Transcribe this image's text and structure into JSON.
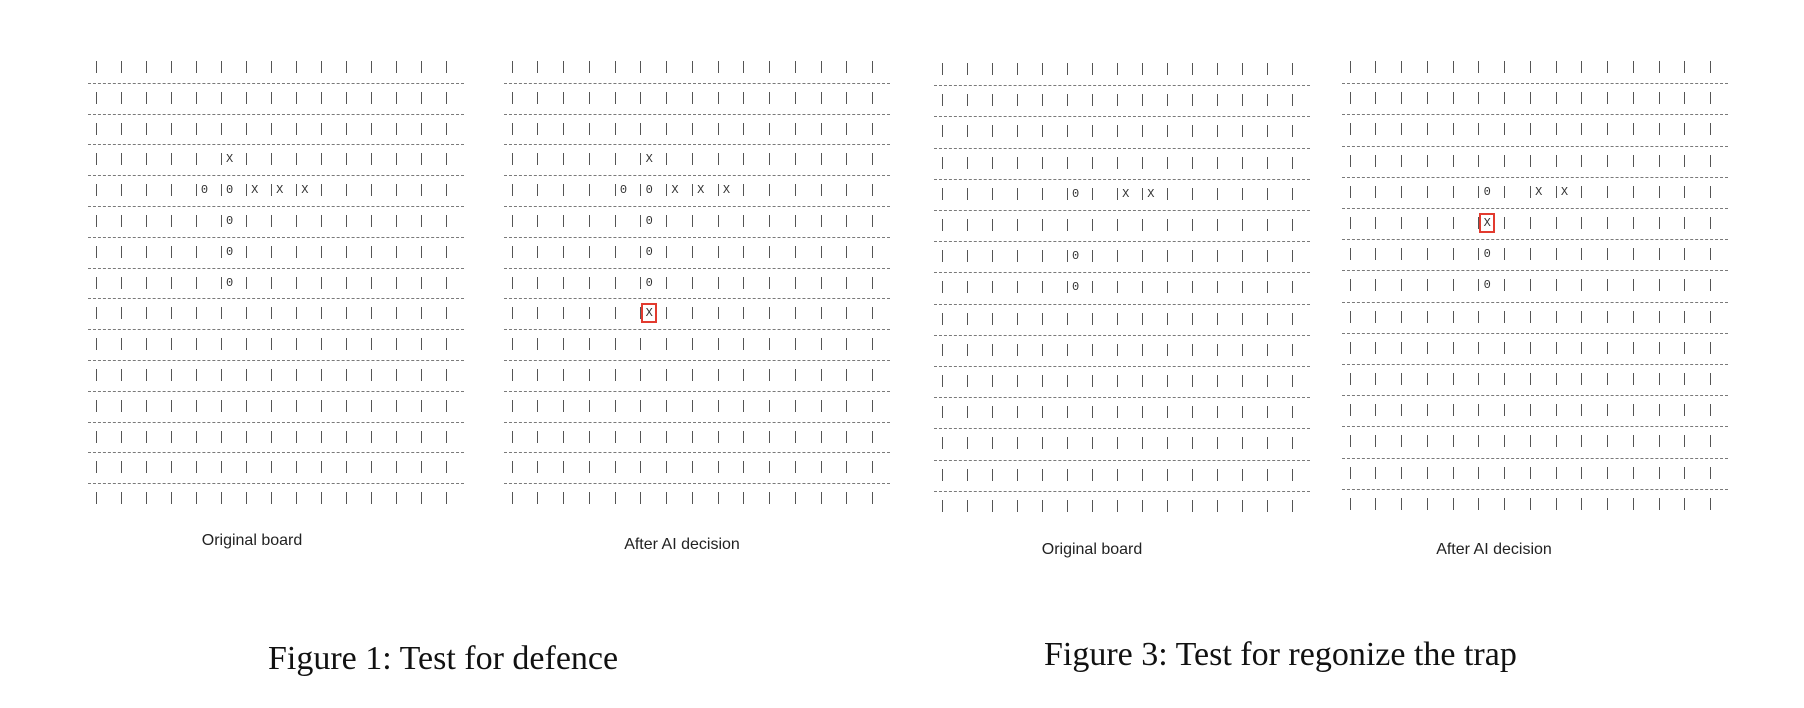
{
  "figures": [
    {
      "caption": "Figure 1: Test for defence",
      "boards": [
        {
          "label": "Original board",
          "marks": [
            {
              "r": 3,
              "c": 5,
              "v": "X"
            },
            {
              "r": 4,
              "c": 4,
              "v": "0"
            },
            {
              "r": 4,
              "c": 5,
              "v": "0"
            },
            {
              "r": 4,
              "c": 6,
              "v": "X"
            },
            {
              "r": 4,
              "c": 7,
              "v": "X"
            },
            {
              "r": 4,
              "c": 8,
              "v": "X"
            },
            {
              "r": 5,
              "c": 5,
              "v": "0"
            },
            {
              "r": 6,
              "c": 5,
              "v": "0"
            },
            {
              "r": 7,
              "c": 5,
              "v": "0"
            }
          ]
        },
        {
          "label": "After AI decision",
          "marks": [
            {
              "r": 3,
              "c": 5,
              "v": "X"
            },
            {
              "r": 4,
              "c": 4,
              "v": "0"
            },
            {
              "r": 4,
              "c": 5,
              "v": "0"
            },
            {
              "r": 4,
              "c": 6,
              "v": "X"
            },
            {
              "r": 4,
              "c": 7,
              "v": "X"
            },
            {
              "r": 4,
              "c": 8,
              "v": "X"
            },
            {
              "r": 5,
              "c": 5,
              "v": "0"
            },
            {
              "r": 6,
              "c": 5,
              "v": "0"
            },
            {
              "r": 7,
              "c": 5,
              "v": "0"
            },
            {
              "r": 8,
              "c": 5,
              "v": "X",
              "highlight": true
            }
          ]
        }
      ]
    },
    {
      "caption": "Figure 3: Test for regonize the trap",
      "boards": [
        {
          "label": "Original board",
          "marks": [
            {
              "r": 4,
              "c": 5,
              "v": "0"
            },
            {
              "r": 4,
              "c": 7,
              "v": "X"
            },
            {
              "r": 4,
              "c": 8,
              "v": "X"
            },
            {
              "r": 6,
              "c": 5,
              "v": "0"
            },
            {
              "r": 7,
              "c": 5,
              "v": "0"
            }
          ]
        },
        {
          "label": "After AI decision",
          "marks": [
            {
              "r": 4,
              "c": 5,
              "v": "0"
            },
            {
              "r": 4,
              "c": 7,
              "v": "X"
            },
            {
              "r": 4,
              "c": 8,
              "v": "X"
            },
            {
              "r": 5,
              "c": 5,
              "v": "X",
              "highlight": true
            },
            {
              "r": 6,
              "c": 5,
              "v": "0"
            },
            {
              "r": 7,
              "c": 5,
              "v": "0"
            }
          ]
        }
      ]
    }
  ]
}
